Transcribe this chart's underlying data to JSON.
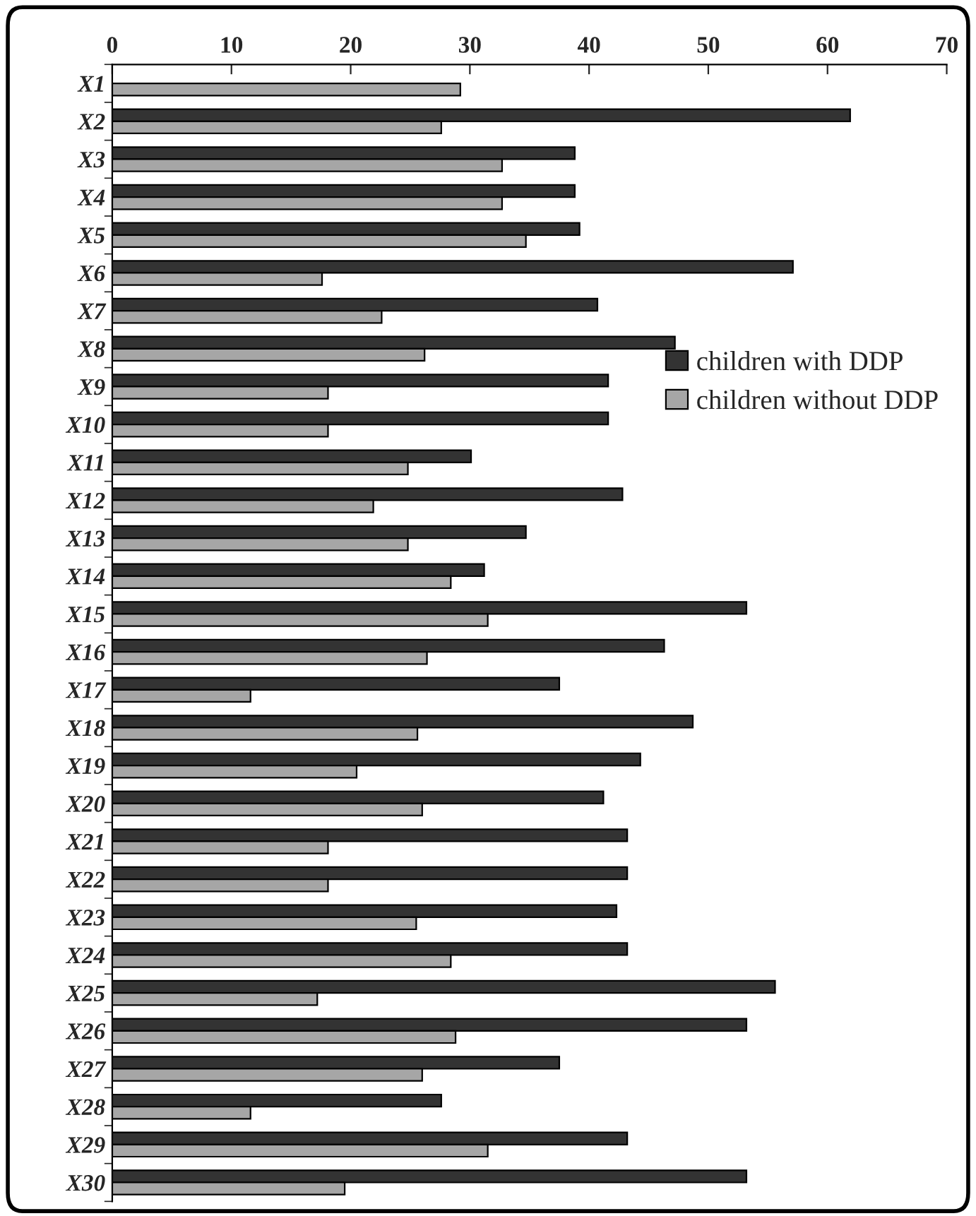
{
  "chart_data": {
    "type": "bar",
    "orientation": "horizontal",
    "categories": [
      "X1",
      "X2",
      "X3",
      "X4",
      "X5",
      "X6",
      "X7",
      "X8",
      "X9",
      "X10",
      "X11",
      "X12",
      "X13",
      "X14",
      "X15",
      "X16",
      "X17",
      "X18",
      "X19",
      "X20",
      "X21",
      "X22",
      "X23",
      "X24",
      "X25",
      "X26",
      "X27",
      "X28",
      "X29",
      "X30"
    ],
    "series": [
      {
        "name": "children with DDP",
        "color": "#333333",
        "values": [
          null,
          61.9,
          38.8,
          38.8,
          39.2,
          57.1,
          40.7,
          47.2,
          41.6,
          41.6,
          30.1,
          42.8,
          34.7,
          31.2,
          53.2,
          46.3,
          37.5,
          48.7,
          44.3,
          41.2,
          43.2,
          43.2,
          42.3,
          43.2,
          55.6,
          53.2,
          37.5,
          27.6,
          43.2,
          53.2
        ]
      },
      {
        "name": "children without DDP",
        "color": "#a6a6a6",
        "values": [
          29.2,
          27.6,
          32.7,
          32.7,
          34.7,
          17.6,
          22.6,
          26.2,
          18.1,
          18.1,
          24.8,
          21.9,
          24.8,
          28.4,
          31.5,
          26.4,
          11.6,
          25.6,
          20.5,
          26.0,
          18.1,
          18.1,
          25.5,
          28.4,
          17.2,
          28.8,
          26.0,
          11.6,
          31.5,
          19.5
        ]
      }
    ],
    "xlim": [
      0,
      70
    ],
    "xticks": [
      0,
      10,
      20,
      30,
      40,
      50,
      60,
      70
    ],
    "grid": false,
    "legend": "right"
  }
}
